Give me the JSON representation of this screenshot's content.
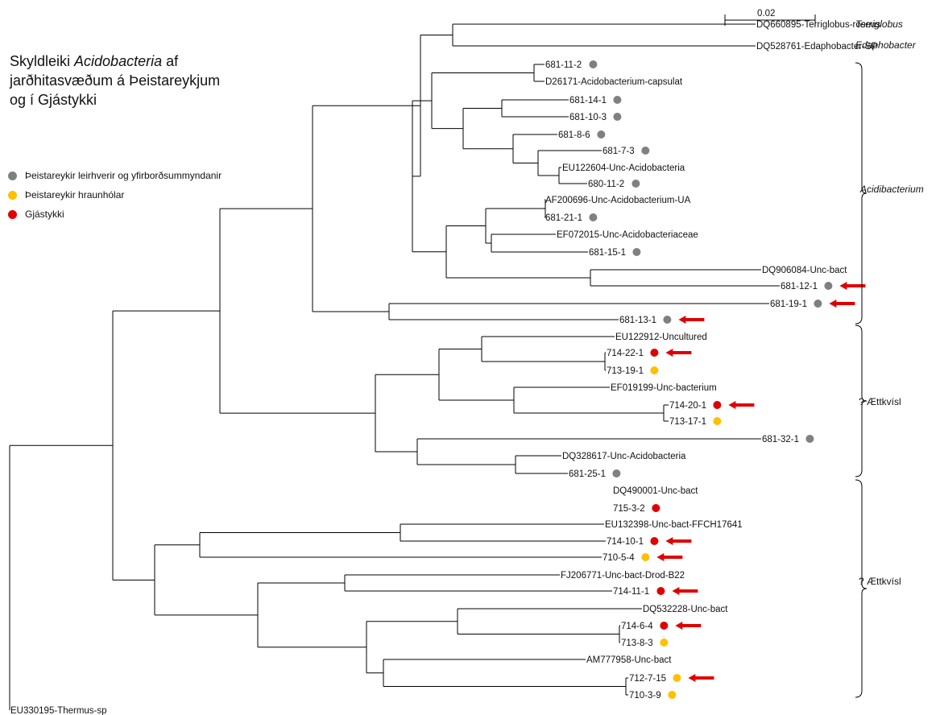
{
  "title": {
    "line1_pre": "Skyldleiki ",
    "line1_italic": "Acidobacteria",
    "line1_post": " af",
    "line2": "jarðhitasvæðum á Þeistareykjum",
    "line3": "og í Gjástykki"
  },
  "legend": [
    {
      "label": "Þeistareykir leirhverir og yfirborðsummyndanir",
      "color": "#808080"
    },
    {
      "label": "Þeistareykir hraunhólar",
      "color": "#FFC000"
    },
    {
      "label": "Gjástykki",
      "color": "#E00000"
    }
  ],
  "scale_bar": {
    "label": "0.02"
  },
  "colors": {
    "grey": "#808080",
    "yellow": "#FFC000",
    "red": "#E00000",
    "arrow": "#E00000",
    "line": "#000000"
  },
  "groups": [
    {
      "label": "Terriglobus",
      "italic": true
    },
    {
      "label": "Edaphobacter",
      "italic": true
    },
    {
      "label": "Acidibacterium",
      "italic": true
    },
    {
      "label": "? Ættkvísl",
      "italic": false
    },
    {
      "label": "? Ættkvísl",
      "italic": false
    }
  ],
  "leaves": [
    {
      "label": "DQ660895-Terriglobus-roseus",
      "dot": null,
      "arrow": false
    },
    {
      "label": "DQ528761-Edaphobacter-SP",
      "dot": null,
      "arrow": false
    },
    {
      "label": "681-11-2",
      "dot": "grey",
      "arrow": false
    },
    {
      "label": "D26171-Acidobacterium-capsulat",
      "dot": null,
      "arrow": false
    },
    {
      "label": "681-14-1",
      "dot": "grey",
      "arrow": false
    },
    {
      "label": "681-10-3",
      "dot": "grey",
      "arrow": false
    },
    {
      "label": "681-8-6",
      "dot": "grey",
      "arrow": false
    },
    {
      "label": "681-7-3",
      "dot": "grey",
      "arrow": false
    },
    {
      "label": "EU122604-Unc-Acidobacteria",
      "dot": null,
      "arrow": false
    },
    {
      "label": "680-11-2",
      "dot": "grey",
      "arrow": false
    },
    {
      "label": "AF200696-Unc-Acidobacterium-UA",
      "dot": null,
      "arrow": false
    },
    {
      "label": "681-21-1",
      "dot": "grey",
      "arrow": false
    },
    {
      "label": "EF072015-Unc-Acidobacteriaceae",
      "dot": null,
      "arrow": false
    },
    {
      "label": "681-15-1",
      "dot": "grey",
      "arrow": false
    },
    {
      "label": "DQ906084-Unc-bact",
      "dot": null,
      "arrow": false
    },
    {
      "label": "681-12-1",
      "dot": "grey",
      "arrow": true
    },
    {
      "label": "681-19-1",
      "dot": "grey",
      "arrow": true
    },
    {
      "label": "681-13-1",
      "dot": "grey",
      "arrow": true
    },
    {
      "label": "EU122912-Uncultured",
      "dot": null,
      "arrow": false
    },
    {
      "label": "714-22-1",
      "dot": "red",
      "arrow": true
    },
    {
      "label": "713-19-1",
      "dot": "yellow",
      "arrow": false
    },
    {
      "label": "EF019199-Unc-bacterium",
      "dot": null,
      "arrow": false
    },
    {
      "label": "714-20-1",
      "dot": "red",
      "arrow": true
    },
    {
      "label": "713-17-1",
      "dot": "yellow",
      "arrow": false
    },
    {
      "label": "681-32-1",
      "dot": "grey",
      "arrow": false
    },
    {
      "label": "DQ328617-Unc-Acidobacteria",
      "dot": null,
      "arrow": false
    },
    {
      "label": "681-25-1",
      "dot": "grey",
      "arrow": false
    },
    {
      "label": "DQ490001-Unc-bact",
      "dot": null,
      "arrow": false
    },
    {
      "label": "715-3-2",
      "dot": "red",
      "arrow": false
    },
    {
      "label": "EU132398-Unc-bact-FFCH17641",
      "dot": null,
      "arrow": false
    },
    {
      "label": "714-10-1",
      "dot": "red",
      "arrow": true
    },
    {
      "label": "710-5-4",
      "dot": "yellow",
      "arrow": true
    },
    {
      "label": "FJ206771-Unc-bact-Drod-B22",
      "dot": null,
      "arrow": false
    },
    {
      "label": "714-11-1",
      "dot": "red",
      "arrow": true
    },
    {
      "label": "DQ532228-Unc-bact",
      "dot": null,
      "arrow": false
    },
    {
      "label": "714-6-4",
      "dot": "red",
      "arrow": true
    },
    {
      "label": "713-8-3",
      "dot": "yellow",
      "arrow": false
    },
    {
      "label": "AM777958-Unc-bact",
      "dot": null,
      "arrow": false
    },
    {
      "label": "712-7-15",
      "dot": "yellow",
      "arrow": true
    },
    {
      "label": "710-3-9",
      "dot": "yellow",
      "arrow": false
    },
    {
      "label": "EU330195-Thermus-sp",
      "dot": null,
      "arrow": false
    }
  ]
}
